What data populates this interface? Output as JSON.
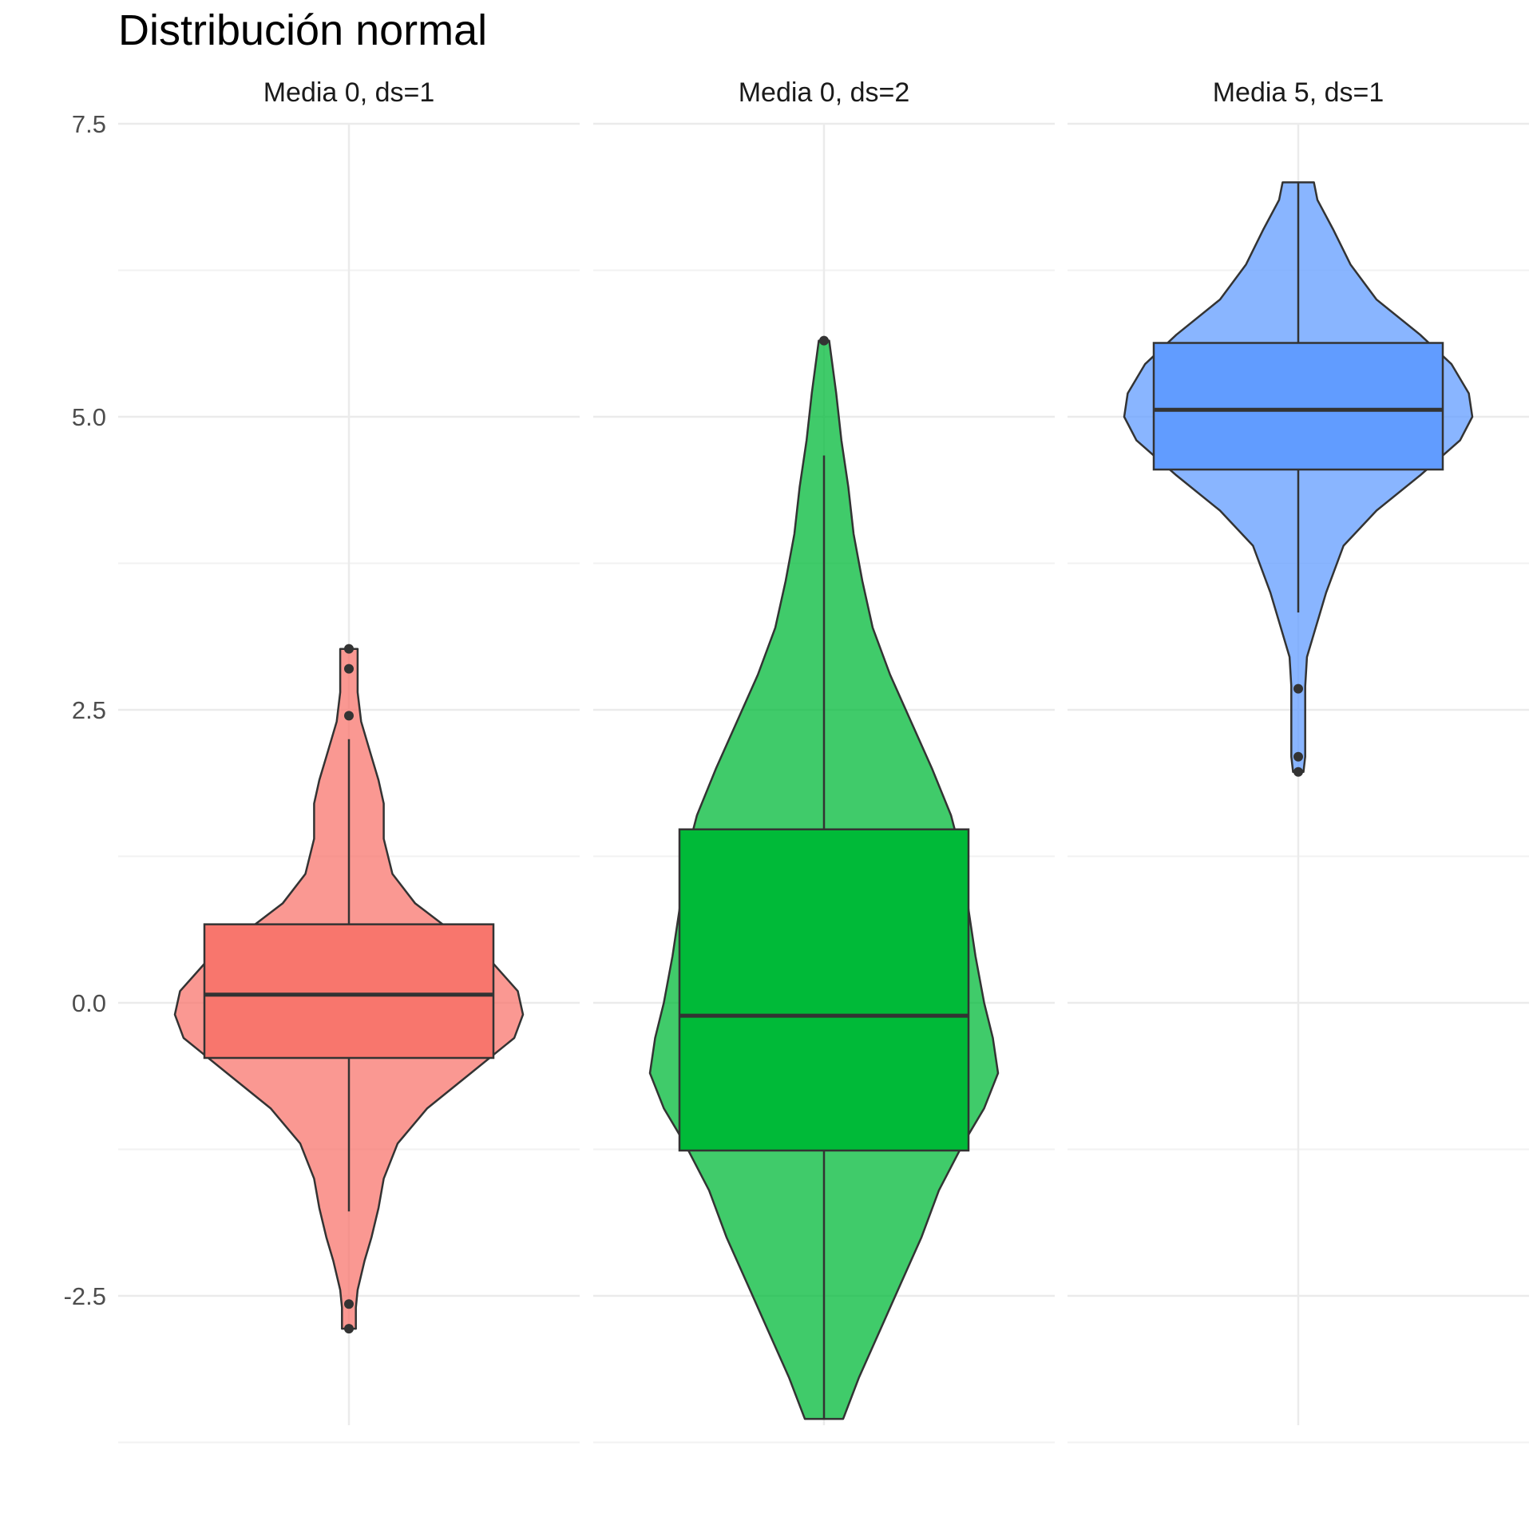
{
  "chart_data": {
    "type": "violin",
    "title": "Distribución normal",
    "xlabel": "",
    "ylabel": "",
    "ylim": [
      -3.75,
      7.5
    ],
    "yticks": [
      -2.5,
      0.0,
      2.5,
      5.0,
      7.5
    ],
    "ytick_labels": [
      "-2.5",
      "0.0",
      "2.5",
      "5.0",
      "7.5"
    ],
    "grid": true,
    "legend": "none",
    "panels": [
      {
        "label": "Media 0, ds=1",
        "color": "#F8766D",
        "violin_min": -2.78,
        "violin_max": 3.02,
        "box": {
          "q1": -0.47,
          "median": 0.07,
          "q3": 0.67,
          "whisker_low": -1.78,
          "whisker_high": 2.25
        },
        "outliers": [
          3.02,
          2.85,
          2.45,
          -2.57,
          -2.78
        ],
        "density": [
          [
            -2.78,
            0.04
          ],
          [
            -2.6,
            0.04
          ],
          [
            -2.45,
            0.05
          ],
          [
            -2.2,
            0.09
          ],
          [
            -2.0,
            0.13
          ],
          [
            -1.75,
            0.17
          ],
          [
            -1.5,
            0.2
          ],
          [
            -1.2,
            0.28
          ],
          [
            -0.9,
            0.45
          ],
          [
            -0.6,
            0.7
          ],
          [
            -0.3,
            0.95
          ],
          [
            -0.1,
            1.0
          ],
          [
            0.1,
            0.97
          ],
          [
            0.35,
            0.82
          ],
          [
            0.6,
            0.6
          ],
          [
            0.85,
            0.38
          ],
          [
            1.1,
            0.25
          ],
          [
            1.4,
            0.2
          ],
          [
            1.7,
            0.2
          ],
          [
            1.9,
            0.17
          ],
          [
            2.1,
            0.13
          ],
          [
            2.4,
            0.07
          ],
          [
            2.65,
            0.05
          ],
          [
            2.85,
            0.05
          ],
          [
            3.02,
            0.05
          ]
        ]
      },
      {
        "label": "Media 0, ds=2",
        "color": "#00BA38",
        "violin_min": -3.55,
        "violin_max": 5.65,
        "box": {
          "q1": -1.26,
          "median": -0.11,
          "q3": 1.48,
          "whisker_low": -3.55,
          "whisker_high": 4.67
        },
        "outliers": [
          5.65
        ],
        "density": [
          [
            -3.55,
            0.11
          ],
          [
            -3.2,
            0.2
          ],
          [
            -2.8,
            0.32
          ],
          [
            -2.4,
            0.44
          ],
          [
            -2.0,
            0.56
          ],
          [
            -1.6,
            0.66
          ],
          [
            -1.2,
            0.8
          ],
          [
            -0.9,
            0.92
          ],
          [
            -0.6,
            1.0
          ],
          [
            -0.3,
            0.97
          ],
          [
            0.0,
            0.92
          ],
          [
            0.4,
            0.87
          ],
          [
            0.8,
            0.83
          ],
          [
            1.2,
            0.8
          ],
          [
            1.6,
            0.73
          ],
          [
            2.0,
            0.62
          ],
          [
            2.4,
            0.5
          ],
          [
            2.8,
            0.38
          ],
          [
            3.2,
            0.28
          ],
          [
            3.6,
            0.22
          ],
          [
            4.0,
            0.17
          ],
          [
            4.4,
            0.14
          ],
          [
            4.8,
            0.1
          ],
          [
            5.2,
            0.07
          ],
          [
            5.65,
            0.03
          ]
        ]
      },
      {
        "label": "Media 5, ds=1",
        "color": "#619CFF",
        "violin_min": 1.97,
        "violin_max": 7.0,
        "box": {
          "q1": 4.55,
          "median": 5.06,
          "q3": 5.63,
          "whisker_low": 3.33,
          "whisker_high": 7.0
        },
        "outliers": [
          2.68,
          2.1,
          1.97
        ],
        "density": [
          [
            1.97,
            0.03
          ],
          [
            2.1,
            0.04
          ],
          [
            2.4,
            0.04
          ],
          [
            2.7,
            0.04
          ],
          [
            2.95,
            0.05
          ],
          [
            3.2,
            0.1
          ],
          [
            3.5,
            0.16
          ],
          [
            3.9,
            0.26
          ],
          [
            4.2,
            0.45
          ],
          [
            4.5,
            0.7
          ],
          [
            4.8,
            0.93
          ],
          [
            5.0,
            1.0
          ],
          [
            5.2,
            0.98
          ],
          [
            5.45,
            0.88
          ],
          [
            5.7,
            0.7
          ],
          [
            6.0,
            0.45
          ],
          [
            6.3,
            0.3
          ],
          [
            6.6,
            0.2
          ],
          [
            6.85,
            0.11
          ],
          [
            7.0,
            0.09
          ]
        ]
      }
    ]
  }
}
